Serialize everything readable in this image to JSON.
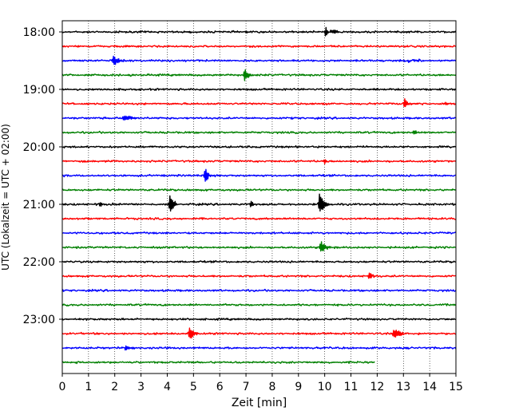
{
  "chart_data": {
    "type": "line",
    "title": "",
    "xlabel": "Zeit  [min]",
    "ylabel": "UTC (Lokalzeit = UTC + 02:00)",
    "xlim": [
      0,
      15
    ],
    "xticks": [
      "0",
      "1",
      "2",
      "3",
      "4",
      "5",
      "6",
      "7",
      "8",
      "9",
      "10",
      "11",
      "12",
      "13",
      "14",
      "15"
    ],
    "yticks": [
      "18:00",
      "19:00",
      "20:00",
      "21:00",
      "22:00",
      "23:00"
    ],
    "grid": "vertical dotted at each minute",
    "row_interval_min": 15,
    "start_utc": "18:00",
    "last_row_end_min": 11.9,
    "colors": [
      "#000000",
      "#ff0000",
      "#0000ff",
      "#008000"
    ],
    "series": [
      {
        "start": "18:00",
        "color": "#000000",
        "events": [
          {
            "t": 10.05,
            "amp": 1.0
          }
        ]
      },
      {
        "start": "18:15",
        "color": "#ff0000",
        "events": []
      },
      {
        "start": "18:30",
        "color": "#0000ff",
        "events": [
          {
            "t": 1.95,
            "amp": 0.45
          },
          {
            "t": 13.2,
            "amp": 0.4
          }
        ]
      },
      {
        "start": "18:45",
        "color": "#008000",
        "events": [
          {
            "t": 6.95,
            "amp": 0.5
          }
        ]
      },
      {
        "start": "19:00",
        "color": "#000000",
        "events": []
      },
      {
        "start": "19:15",
        "color": "#ff0000",
        "events": [
          {
            "t": 13.05,
            "amp": 0.4
          },
          {
            "t": 14.6,
            "amp": 0.25
          }
        ]
      },
      {
        "start": "19:30",
        "color": "#0000ff",
        "events": [
          {
            "t": 2.3,
            "amp": 0.5
          }
        ]
      },
      {
        "start": "19:45",
        "color": "#008000",
        "events": [
          {
            "t": 13.4,
            "amp": 0.25
          }
        ]
      },
      {
        "start": "20:00",
        "color": "#000000",
        "events": []
      },
      {
        "start": "20:15",
        "color": "#ff0000",
        "events": [
          {
            "t": 10.0,
            "amp": 0.25
          }
        ]
      },
      {
        "start": "20:30",
        "color": "#0000ff",
        "events": [
          {
            "t": 5.45,
            "amp": 0.9
          }
        ]
      },
      {
        "start": "20:45",
        "color": "#008000",
        "events": []
      },
      {
        "start": "21:00",
        "color": "#000000",
        "events": [
          {
            "t": 1.45,
            "amp": 0.35
          },
          {
            "t": 4.1,
            "amp": 0.85
          },
          {
            "t": 7.2,
            "amp": 0.45
          },
          {
            "t": 9.8,
            "amp": 1.0
          }
        ]
      },
      {
        "start": "21:15",
        "color": "#ff0000",
        "events": []
      },
      {
        "start": "21:30",
        "color": "#0000ff",
        "events": []
      },
      {
        "start": "21:45",
        "color": "#008000",
        "events": [
          {
            "t": 9.85,
            "amp": 0.55
          }
        ]
      },
      {
        "start": "22:00",
        "color": "#000000",
        "events": []
      },
      {
        "start": "22:15",
        "color": "#ff0000",
        "events": [
          {
            "t": 11.7,
            "amp": 0.3
          }
        ]
      },
      {
        "start": "22:30",
        "color": "#0000ff",
        "events": []
      },
      {
        "start": "22:45",
        "color": "#008000",
        "events": []
      },
      {
        "start": "23:00",
        "color": "#000000",
        "events": []
      },
      {
        "start": "23:15",
        "color": "#ff0000",
        "events": [
          {
            "t": 4.85,
            "amp": 0.55
          },
          {
            "t": 12.6,
            "amp": 0.8
          }
        ]
      },
      {
        "start": "23:30",
        "color": "#0000ff",
        "events": [
          {
            "t": 2.4,
            "amp": 0.2
          }
        ]
      },
      {
        "start": "23:45",
        "color": "#008000",
        "events": []
      }
    ]
  }
}
